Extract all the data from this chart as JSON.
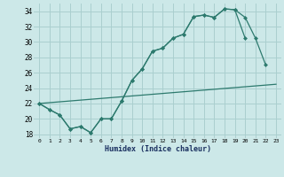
{
  "xlabel": "Humidex (Indice chaleur)",
  "bg_color": "#cce8e8",
  "grid_color": "#aacfcf",
  "line_color": "#2d7a6e",
  "xlim": [
    -0.5,
    23.5
  ],
  "ylim": [
    17.5,
    35.0
  ],
  "xticks": [
    0,
    1,
    2,
    3,
    4,
    5,
    6,
    7,
    8,
    9,
    10,
    11,
    12,
    13,
    14,
    15,
    16,
    17,
    18,
    19,
    20,
    21,
    22,
    23
  ],
  "yticks": [
    18,
    20,
    22,
    24,
    26,
    28,
    30,
    32,
    34
  ],
  "line1_x": [
    0,
    1,
    2,
    3,
    4,
    5,
    6,
    7,
    8,
    9,
    10,
    11,
    12,
    13,
    14,
    15,
    16,
    17,
    18,
    19,
    20
  ],
  "line1_y": [
    22.0,
    21.2,
    20.5,
    18.7,
    19.0,
    18.2,
    20.0,
    20.0,
    22.3,
    25.0,
    26.5,
    28.8,
    29.2,
    30.5,
    31.0,
    33.3,
    33.5,
    33.2,
    34.3,
    34.2,
    30.5
  ],
  "line2_x": [
    0,
    1,
    2,
    3,
    4,
    5,
    6,
    7,
    8,
    9,
    10,
    11,
    12,
    13,
    14,
    15,
    16,
    17,
    18,
    19,
    20,
    21,
    22
  ],
  "line2_y": [
    22.0,
    21.2,
    20.5,
    18.7,
    19.0,
    18.2,
    20.0,
    20.0,
    22.3,
    25.0,
    26.5,
    28.8,
    29.2,
    30.5,
    31.0,
    33.3,
    33.5,
    33.2,
    34.3,
    34.2,
    33.2,
    30.5,
    27.0
  ],
  "line3_x": [
    0,
    23
  ],
  "line3_y": [
    22.0,
    24.5
  ]
}
